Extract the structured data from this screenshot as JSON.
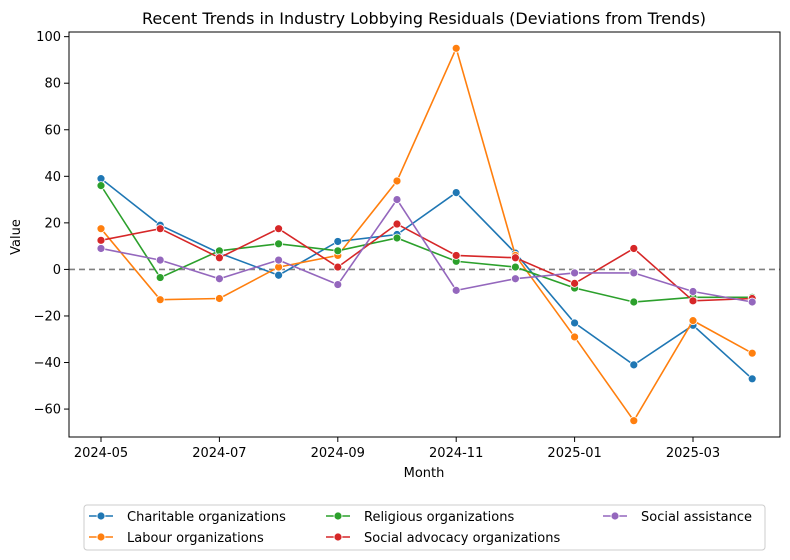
{
  "chart_data": {
    "type": "line",
    "title": "Recent Trends in Industry Lobbying Residuals (Deviations from Trends)",
    "xlabel": "Month",
    "ylabel": "Value",
    "x": [
      "2024-05",
      "2024-06",
      "2024-07",
      "2024-08",
      "2024-09",
      "2024-10",
      "2024-11",
      "2024-12",
      "2025-01",
      "2025-02",
      "2025-03",
      "2025-04"
    ],
    "x_ticks": [
      "2024-05",
      "2024-07",
      "2024-09",
      "2024-11",
      "2025-01",
      "2025-03"
    ],
    "y_ticks": [
      -60,
      -40,
      -20,
      0,
      20,
      40,
      60,
      80,
      100
    ],
    "ylim": [
      -72,
      102
    ],
    "reference_line": {
      "y": 0,
      "style": "dashed",
      "color": "#808080"
    },
    "grid": false,
    "legend_position": "bottom",
    "series": [
      {
        "name": "Charitable organizations",
        "color": "#1f77b4",
        "values": [
          39,
          19,
          7,
          -2.5,
          12,
          15,
          33,
          7,
          -23,
          -41,
          -24,
          -47
        ]
      },
      {
        "name": "Labour organizations",
        "color": "#ff7f0e",
        "values": [
          17.5,
          -13,
          -12.5,
          1,
          6,
          38,
          95,
          6,
          -29,
          -65,
          -22,
          -36
        ]
      },
      {
        "name": "Religious organizations",
        "color": "#2ca02c",
        "values": [
          36,
          -3.5,
          8,
          11,
          8,
          13.5,
          3.5,
          1,
          -8,
          -14,
          -12,
          -12
        ]
      },
      {
        "name": "Social advocacy organizations",
        "color": "#d62728",
        "values": [
          12.5,
          17.5,
          5,
          17.5,
          1,
          19.5,
          6,
          5,
          -6,
          9,
          -13.5,
          -12.5
        ]
      },
      {
        "name": "Social assistance",
        "color": "#9467bd",
        "values": [
          9,
          4,
          -4,
          4,
          -6.5,
          30,
          -9,
          -4,
          -1.5,
          -1.5,
          -9.5,
          -14
        ]
      }
    ]
  }
}
